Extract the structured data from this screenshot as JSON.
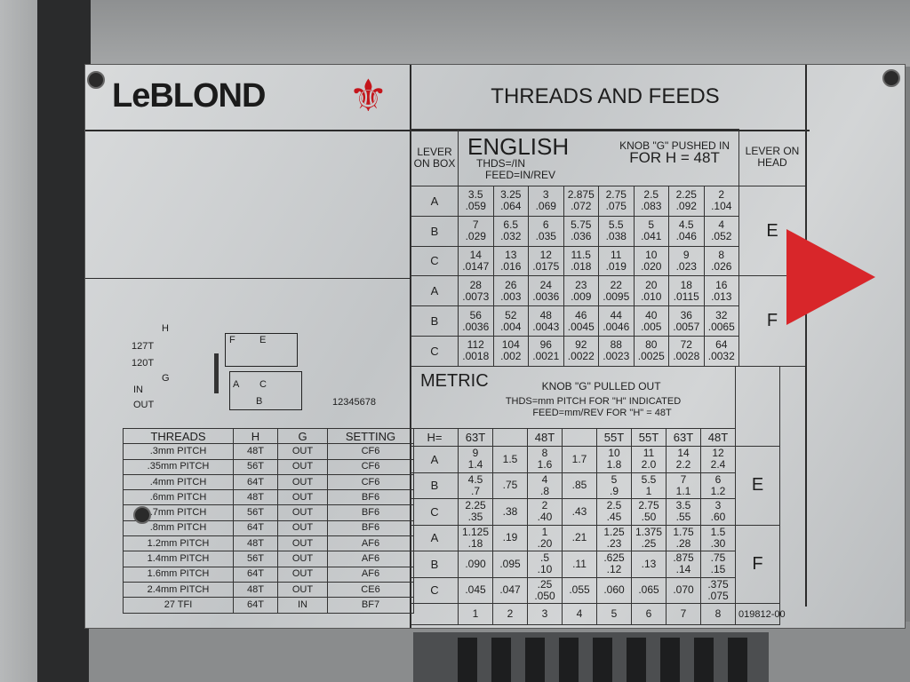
{
  "brand": {
    "logo_text": "LeBLOND",
    "logo_color": "#1b1b1b",
    "emblem": "fleur-de-lis",
    "emblem_color": "#c4161c"
  },
  "title": "THREADS AND FEEDS",
  "part_number": "019812-00",
  "arrow_color": "#d8262a",
  "diagram": {
    "labels": {
      "h": "H",
      "t127": "127T",
      "t120": "120T",
      "g": "G",
      "in": "IN",
      "out": "OUT",
      "f": "F",
      "e": "E",
      "a": "A",
      "c": "C",
      "b": "B",
      "positions": "12345678"
    }
  },
  "english": {
    "lever_box_header": "LEVER ON BOX",
    "title": "ENGLISH",
    "units1": "THDS=/IN",
    "units2": "FEED=IN/REV",
    "knob": "KNOB \"G\" PUSHED IN",
    "for_h": "FOR H = 48T",
    "lever_head_header": "LEVER ON HEAD",
    "rows": [
      {
        "lever": "A",
        "cells": [
          [
            "3.5",
            ".059"
          ],
          [
            "3.25",
            ".064"
          ],
          [
            "3",
            ".069"
          ],
          [
            "2.875",
            ".072"
          ],
          [
            "2.75",
            ".075"
          ],
          [
            "2.5",
            ".083"
          ],
          [
            "2.25",
            ".092"
          ],
          [
            "2",
            ".104"
          ]
        ]
      },
      {
        "lever": "B",
        "cells": [
          [
            "7",
            ".029"
          ],
          [
            "6.5",
            ".032"
          ],
          [
            "6",
            ".035"
          ],
          [
            "5.75",
            ".036"
          ],
          [
            "5.5",
            ".038"
          ],
          [
            "5",
            ".041"
          ],
          [
            "4.5",
            ".046"
          ],
          [
            "4",
            ".052"
          ]
        ]
      },
      {
        "lever": "C",
        "cells": [
          [
            "14",
            ".0147"
          ],
          [
            "13",
            ".016"
          ],
          [
            "12",
            ".0175"
          ],
          [
            "11.5",
            ".018"
          ],
          [
            "11",
            ".019"
          ],
          [
            "10",
            ".020"
          ],
          [
            "9",
            ".023"
          ],
          [
            "8",
            ".026"
          ]
        ]
      },
      {
        "lever": "A",
        "cells": [
          [
            "28",
            ".0073"
          ],
          [
            "26",
            ".003"
          ],
          [
            "24",
            ".0036"
          ],
          [
            "23",
            ".009"
          ],
          [
            "22",
            ".0095"
          ],
          [
            "20",
            ".010"
          ],
          [
            "18",
            ".0115"
          ],
          [
            "16",
            ".013"
          ]
        ]
      },
      {
        "lever": "B",
        "cells": [
          [
            "56",
            ".0036"
          ],
          [
            "52",
            ".004"
          ],
          [
            "48",
            ".0043"
          ],
          [
            "46",
            ".0045"
          ],
          [
            "44",
            ".0046"
          ],
          [
            "40",
            ".005"
          ],
          [
            "36",
            ".0057"
          ],
          [
            "32",
            ".0065"
          ]
        ]
      },
      {
        "lever": "C",
        "cells": [
          [
            "112",
            ".0018"
          ],
          [
            "104",
            ".002"
          ],
          [
            "96",
            ".0021"
          ],
          [
            "92",
            ".0022"
          ],
          [
            "88",
            ".0023"
          ],
          [
            "80",
            ".0025"
          ],
          [
            "72",
            ".0028"
          ],
          [
            "64",
            ".0032"
          ]
        ]
      }
    ],
    "head": [
      "E",
      "F"
    ]
  },
  "metric": {
    "title": "METRIC",
    "knob": "KNOB \"G\" PULLED OUT",
    "units1": "THDS=mm PITCH FOR \"H\" INDICATED",
    "units2": "FEED=mm/REV FOR \"H\" = 48T",
    "h_label": "H=",
    "h_values": [
      "63T",
      "",
      "48T",
      "",
      "55T",
      "55T",
      "63T",
      "48T"
    ],
    "rows": [
      {
        "lever": "A",
        "cells": [
          [
            "9",
            "1.4"
          ],
          [
            "",
            "1.5"
          ],
          [
            "8",
            "1.6"
          ],
          [
            "",
            "1.7"
          ],
          [
            "10",
            "1.8"
          ],
          [
            "11",
            "2.0"
          ],
          [
            "14",
            "2.2"
          ],
          [
            "12",
            "2.4"
          ]
        ]
      },
      {
        "lever": "B",
        "cells": [
          [
            "4.5",
            ".7"
          ],
          [
            "",
            ".75"
          ],
          [
            "4",
            ".8"
          ],
          [
            "",
            ".85"
          ],
          [
            "5",
            ".9"
          ],
          [
            "5.5",
            "1"
          ],
          [
            "7",
            "1.1"
          ],
          [
            "6",
            "1.2"
          ]
        ]
      },
      {
        "lever": "C",
        "cells": [
          [
            "2.25",
            ".35"
          ],
          [
            "",
            ".38"
          ],
          [
            "2",
            ".40"
          ],
          [
            "",
            ".43"
          ],
          [
            "2.5",
            ".45"
          ],
          [
            "2.75",
            ".50"
          ],
          [
            "3.5",
            ".55"
          ],
          [
            "3",
            ".60"
          ]
        ]
      },
      {
        "lever": "A",
        "cells": [
          [
            "1.125",
            ".18"
          ],
          [
            "",
            ".19"
          ],
          [
            "1",
            ".20"
          ],
          [
            "",
            ".21"
          ],
          [
            "1.25",
            ".23"
          ],
          [
            "1.375",
            ".25"
          ],
          [
            "1.75",
            ".28"
          ],
          [
            "1.5",
            ".30"
          ]
        ]
      },
      {
        "lever": "B",
        "cells": [
          [
            "",
            ".090"
          ],
          [
            "",
            ".095"
          ],
          [
            ".5",
            ".10"
          ],
          [
            "",
            ".11"
          ],
          [
            ".625",
            ".12"
          ],
          [
            "",
            ".13"
          ],
          [
            ".875",
            ".14"
          ],
          [
            ".75",
            ".15"
          ]
        ]
      },
      {
        "lever": "C",
        "cells": [
          [
            "",
            ".045"
          ],
          [
            "",
            ".047"
          ],
          [
            ".25",
            ".050"
          ],
          [
            "",
            ".055"
          ],
          [
            "",
            ".060"
          ],
          [
            "",
            ".065"
          ],
          [
            "",
            ".070"
          ],
          [
            ".375",
            ".075"
          ]
        ]
      }
    ],
    "positions": [
      "1",
      "2",
      "3",
      "4",
      "5",
      "6",
      "7",
      "8"
    ],
    "head": [
      "E",
      "F"
    ]
  },
  "threads_table": {
    "headers": [
      "THREADS",
      "H",
      "G",
      "SETTING"
    ],
    "rows": [
      [
        ".3mm PITCH",
        "48T",
        "OUT",
        "CF6"
      ],
      [
        ".35mm PITCH",
        "56T",
        "OUT",
        "CF6"
      ],
      [
        ".4mm PITCH",
        "64T",
        "OUT",
        "CF6"
      ],
      [
        ".6mm PITCH",
        "48T",
        "OUT",
        "BF6"
      ],
      [
        ".7mm PITCH",
        "56T",
        "OUT",
        "BF6"
      ],
      [
        ".8mm PITCH",
        "64T",
        "OUT",
        "BF6"
      ],
      [
        "1.2mm PITCH",
        "48T",
        "OUT",
        "AF6"
      ],
      [
        "1.4mm PITCH",
        "56T",
        "OUT",
        "AF6"
      ],
      [
        "1.6mm PITCH",
        "64T",
        "OUT",
        "AF6"
      ],
      [
        "2.4mm PITCH",
        "48T",
        "OUT",
        "CE6"
      ],
      [
        "27 TFI",
        "64T",
        "IN",
        "BF7"
      ]
    ]
  }
}
